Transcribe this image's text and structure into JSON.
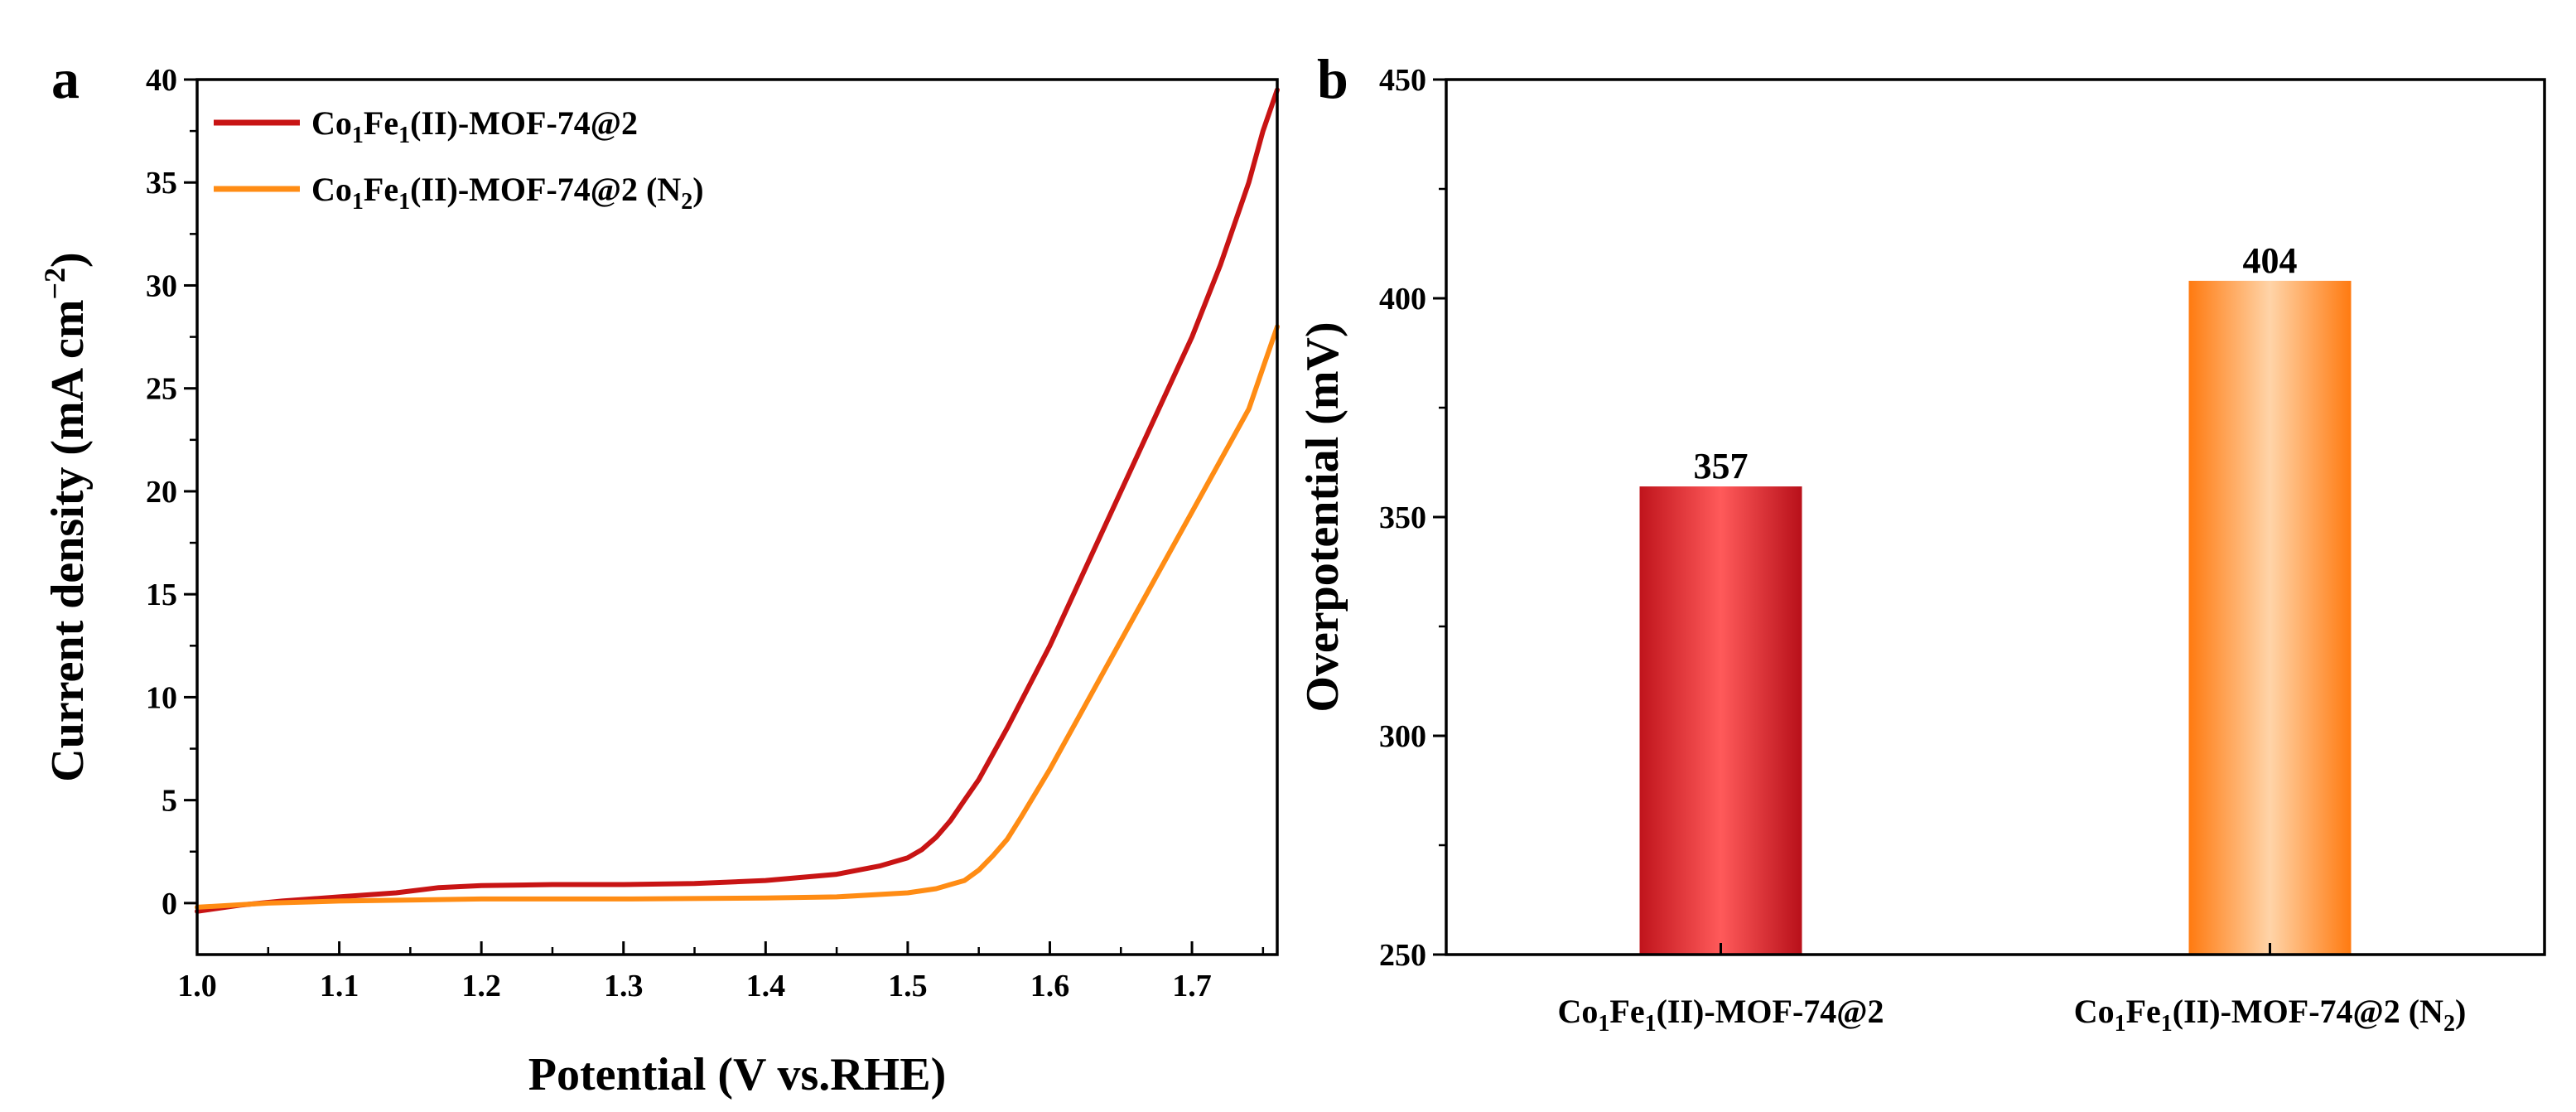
{
  "chart_data": [
    {
      "panel": "a",
      "type": "line",
      "xlabel": "Potential (V vs.RHE)",
      "ylabel_parts": [
        "Current density (mA cm",
        "−2",
        ")"
      ],
      "xlim": [
        1.0,
        1.76
      ],
      "ylim": [
        -2.5,
        40
      ],
      "xticks": [
        "1.0",
        "1.1",
        "1.2",
        "1.3",
        "1.4",
        "1.5",
        "1.6",
        "1.7"
      ],
      "yticks": [
        "0",
        "5",
        "10",
        "15",
        "20",
        "25",
        "30",
        "35",
        "40"
      ],
      "legend_position": "top-left",
      "series": [
        {
          "name": "Co1Fe1(II)-MOF-74@2",
          "name_parts": [
            "Co",
            "1",
            "Fe",
            "1",
            "(II)-MOF-74@2"
          ],
          "color": "#c81414",
          "x": [
            1.0,
            1.03,
            1.06,
            1.1,
            1.14,
            1.17,
            1.2,
            1.25,
            1.3,
            1.35,
            1.4,
            1.45,
            1.48,
            1.5,
            1.51,
            1.52,
            1.53,
            1.54,
            1.55,
            1.57,
            1.6,
            1.63,
            1.66,
            1.69,
            1.7,
            1.72,
            1.74,
            1.75,
            1.76
          ],
          "y": [
            -0.4,
            -0.1,
            0.1,
            0.3,
            0.5,
            0.75,
            0.85,
            0.9,
            0.9,
            0.95,
            1.1,
            1.4,
            1.8,
            2.2,
            2.6,
            3.2,
            4.0,
            5.0,
            6.0,
            8.5,
            12.5,
            17.0,
            21.5,
            26.0,
            27.5,
            31.0,
            35.0,
            37.5,
            39.5
          ]
        },
        {
          "name": "Co1Fe1(II)-MOF-74@2 (N2)",
          "name_parts": [
            "Co",
            "1",
            "Fe",
            "1",
            "(II)-MOF-74@2 (N",
            "2",
            ")"
          ],
          "color": "#ff8c14",
          "x": [
            1.0,
            1.05,
            1.1,
            1.2,
            1.3,
            1.4,
            1.45,
            1.5,
            1.52,
            1.54,
            1.55,
            1.56,
            1.57,
            1.58,
            1.6,
            1.62,
            1.64,
            1.66,
            1.68,
            1.7,
            1.72,
            1.74,
            1.75,
            1.76
          ],
          "y": [
            -0.2,
            0.0,
            0.1,
            0.2,
            0.2,
            0.25,
            0.3,
            0.5,
            0.7,
            1.1,
            1.6,
            2.3,
            3.1,
            4.2,
            6.5,
            9.0,
            11.5,
            14.0,
            16.5,
            19.0,
            21.5,
            24.0,
            26.0,
            28.0
          ]
        }
      ]
    },
    {
      "panel": "b",
      "type": "bar",
      "ylabel": "Overpotential (mV)",
      "ylim": [
        250,
        450
      ],
      "yticks": [
        "250",
        "300",
        "350",
        "400",
        "450"
      ],
      "categories": [
        "Co1Fe1(II)-MOF-74@2",
        "Co1Fe1(II)-MOF-74@2 (N2)"
      ],
      "category_parts": [
        [
          "Co",
          "1",
          "Fe",
          "1",
          "(II)-MOF-74@2"
        ],
        [
          "Co",
          "1",
          "Fe",
          "1",
          "(II)-MOF-74@2 (N",
          "2",
          ")"
        ]
      ],
      "values": [
        357,
        404
      ],
      "value_labels": [
        "357",
        "404"
      ],
      "colors": [
        "#e8383d",
        "#ff8c1a"
      ]
    }
  ]
}
